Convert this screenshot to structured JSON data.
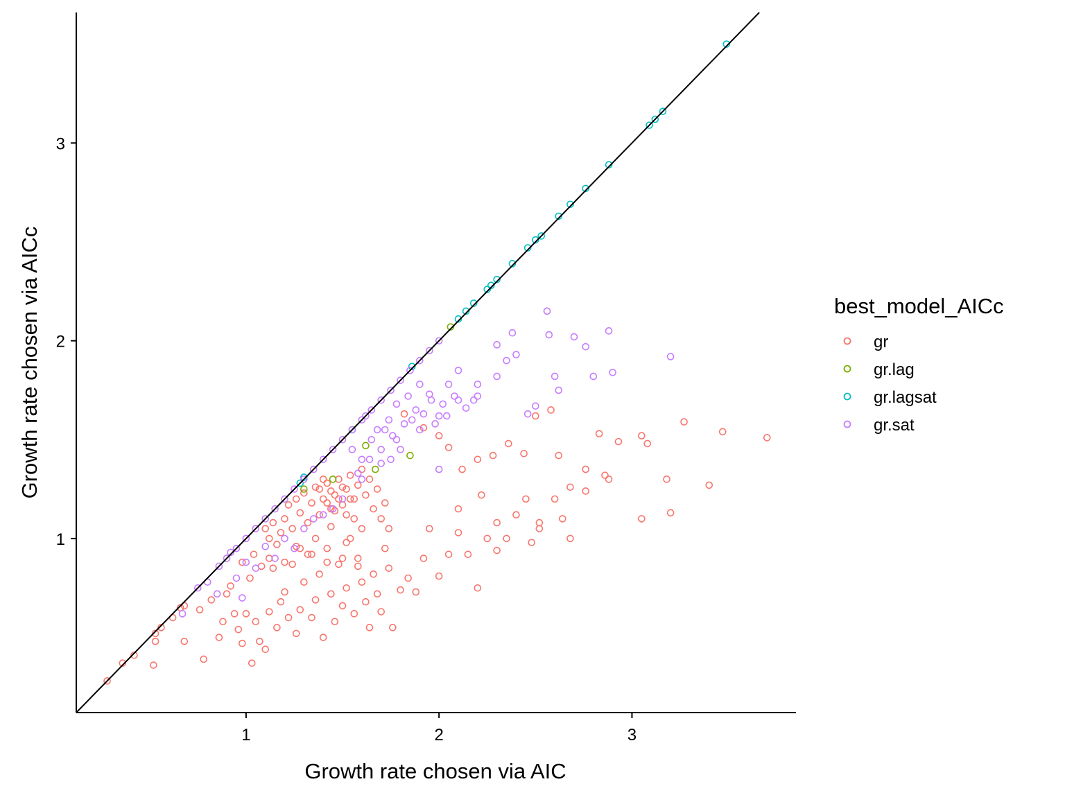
{
  "chart_data": {
    "type": "scatter",
    "xlabel": "Growth rate chosen via AIC",
    "ylabel": "Growth rate chosen via AICc",
    "xlim": [
      0.12,
      3.85
    ],
    "ylim": [
      0.12,
      3.66
    ],
    "x_ticks": [
      1,
      2,
      3
    ],
    "y_ticks": [
      1,
      2,
      3
    ],
    "x_tick_labels": [
      "1",
      "2",
      "3"
    ],
    "y_tick_labels": [
      "1",
      "2",
      "3"
    ],
    "grid": false,
    "reference_line": {
      "slope": 1,
      "intercept": 0
    },
    "legend": {
      "title": "best_model_AICc",
      "position": "right"
    },
    "colors": {
      "gr": "#F8766D",
      "gr.lag": "#7CAE00",
      "gr.lagsat": "#00BFC4",
      "gr.sat": "#C77CFF"
    },
    "series": [
      {
        "name": "gr",
        "color": "#F8766D",
        "points": [
          [
            0.28,
            0.28
          ],
          [
            0.36,
            0.37
          ],
          [
            0.42,
            0.41
          ],
          [
            0.52,
            0.36
          ],
          [
            0.53,
            0.48
          ],
          [
            0.53,
            0.52
          ],
          [
            0.56,
            0.55
          ],
          [
            0.62,
            0.6
          ],
          [
            0.66,
            0.65
          ],
          [
            0.68,
            0.66
          ],
          [
            0.68,
            0.48
          ],
          [
            0.78,
            0.39
          ],
          [
            0.76,
            0.64
          ],
          [
            0.82,
            0.69
          ],
          [
            0.86,
            0.5
          ],
          [
            0.88,
            0.58
          ],
          [
            0.9,
            0.72
          ],
          [
            0.92,
            0.76
          ],
          [
            0.94,
            0.62
          ],
          [
            0.96,
            0.54
          ],
          [
            0.98,
            0.47
          ],
          [
            1.0,
            0.62
          ],
          [
            1.02,
            0.8
          ],
          [
            1.03,
            0.37
          ],
          [
            1.05,
            0.58
          ],
          [
            1.07,
            0.48
          ],
          [
            1.1,
            0.44
          ],
          [
            1.12,
            0.63
          ],
          [
            1.14,
            0.85
          ],
          [
            1.16,
            0.55
          ],
          [
            1.18,
            0.68
          ],
          [
            1.2,
            0.73
          ],
          [
            1.22,
            0.6
          ],
          [
            1.24,
            0.87
          ],
          [
            1.26,
            0.52
          ],
          [
            1.28,
            0.64
          ],
          [
            1.3,
            0.78
          ],
          [
            1.32,
            0.92
          ],
          [
            1.34,
            0.6
          ],
          [
            1.36,
            0.69
          ],
          [
            1.38,
            0.82
          ],
          [
            1.4,
            0.5
          ],
          [
            1.42,
            0.95
          ],
          [
            1.44,
            0.72
          ],
          [
            1.46,
            0.58
          ],
          [
            1.48,
            0.87
          ],
          [
            1.5,
            0.66
          ],
          [
            1.52,
            0.75
          ],
          [
            1.54,
            1.0
          ],
          [
            1.56,
            0.62
          ],
          [
            1.58,
            0.9
          ],
          [
            1.6,
            0.78
          ],
          [
            1.62,
            0.68
          ],
          [
            1.64,
            0.55
          ],
          [
            1.66,
            0.82
          ],
          [
            1.68,
            0.72
          ],
          [
            1.7,
            0.63
          ],
          [
            1.72,
            0.95
          ],
          [
            1.74,
            0.85
          ],
          [
            1.76,
            0.55
          ],
          [
            1.8,
            0.74
          ],
          [
            1.84,
            0.8
          ],
          [
            1.88,
            0.73
          ],
          [
            1.92,
            0.9
          ],
          [
            1.95,
            1.05
          ],
          [
            2.0,
            0.81
          ],
          [
            2.05,
            0.92
          ],
          [
            2.1,
            1.03
          ],
          [
            2.15,
            0.92
          ],
          [
            2.2,
            0.75
          ],
          [
            2.25,
            1.0
          ],
          [
            2.3,
            0.94
          ],
          [
            2.35,
            1.0
          ],
          [
            2.4,
            1.12
          ],
          [
            2.48,
            0.98
          ],
          [
            2.52,
            1.05
          ],
          [
            2.6,
            1.2
          ],
          [
            2.68,
            1.26
          ],
          [
            2.68,
            1.0
          ],
          [
            2.76,
            1.24
          ],
          [
            2.88,
            1.3
          ],
          [
            3.05,
            1.1
          ],
          [
            3.18,
            1.3
          ],
          [
            3.2,
            1.13
          ],
          [
            3.4,
            1.27
          ],
          [
            1.82,
            1.63
          ],
          [
            1.92,
            1.56
          ],
          [
            2.0,
            1.52
          ],
          [
            2.05,
            1.46
          ],
          [
            2.12,
            1.35
          ],
          [
            2.2,
            1.4
          ],
          [
            2.28,
            1.42
          ],
          [
            2.36,
            1.48
          ],
          [
            2.44,
            1.43
          ],
          [
            2.5,
            1.62
          ],
          [
            2.58,
            1.65
          ],
          [
            2.62,
            1.42
          ],
          [
            2.76,
            1.35
          ],
          [
            2.83,
            1.53
          ],
          [
            2.93,
            1.49
          ],
          [
            3.05,
            1.52
          ],
          [
            3.08,
            1.48
          ],
          [
            3.27,
            1.59
          ],
          [
            3.47,
            1.54
          ],
          [
            3.7,
            1.51
          ],
          [
            2.86,
            1.32
          ],
          [
            2.1,
            1.15
          ],
          [
            2.22,
            1.22
          ],
          [
            2.3,
            1.08
          ],
          [
            2.45,
            1.2
          ],
          [
            2.52,
            1.08
          ],
          [
            2.64,
            1.1
          ],
          [
            1.2,
            1.1
          ],
          [
            1.22,
            1.17
          ],
          [
            1.24,
            1.05
          ],
          [
            1.26,
            1.2
          ],
          [
            1.28,
            1.13
          ],
          [
            1.3,
            1.23
          ],
          [
            1.32,
            1.08
          ],
          [
            1.34,
            1.18
          ],
          [
            1.36,
            1.26
          ],
          [
            1.38,
            1.12
          ],
          [
            1.4,
            1.2
          ],
          [
            1.42,
            1.28
          ],
          [
            1.44,
            1.15
          ],
          [
            1.46,
            1.22
          ],
          [
            1.48,
            1.3
          ],
          [
            1.5,
            1.17
          ],
          [
            1.52,
            1.25
          ],
          [
            1.54,
            1.32
          ],
          [
            1.56,
            1.2
          ],
          [
            1.58,
            1.27
          ],
          [
            1.6,
            1.35
          ],
          [
            1.62,
            1.22
          ],
          [
            1.64,
            1.3
          ],
          [
            1.66,
            1.15
          ],
          [
            1.68,
            1.25
          ],
          [
            1.7,
            1.1
          ],
          [
            1.72,
            1.18
          ],
          [
            1.74,
            1.05
          ],
          [
            1.1,
            1.05
          ],
          [
            1.12,
            1.0
          ],
          [
            1.14,
            1.08
          ],
          [
            1.16,
            0.97
          ],
          [
            1.18,
            1.03
          ],
          [
            1.28,
            0.95
          ],
          [
            1.36,
            1.0
          ],
          [
            1.44,
            1.06
          ],
          [
            1.52,
            0.98
          ],
          [
            1.6,
            1.05
          ],
          [
            1.38,
            1.25
          ],
          [
            1.4,
            1.3
          ],
          [
            1.42,
            1.18
          ],
          [
            1.44,
            1.24
          ],
          [
            1.46,
            1.14
          ],
          [
            1.48,
            1.2
          ],
          [
            1.5,
            1.26
          ],
          [
            1.52,
            1.12
          ],
          [
            1.54,
            1.2
          ],
          [
            1.56,
            1.1
          ],
          [
            0.98,
            0.88
          ],
          [
            1.04,
            0.92
          ],
          [
            1.08,
            0.86
          ],
          [
            1.12,
            0.9
          ],
          [
            1.2,
            0.88
          ],
          [
            1.26,
            0.96
          ],
          [
            1.34,
            0.92
          ],
          [
            1.42,
            0.88
          ],
          [
            1.5,
            0.9
          ],
          [
            1.58,
            0.86
          ]
        ]
      },
      {
        "name": "gr.lag",
        "color": "#7CAE00",
        "points": [
          [
            1.62,
            1.47
          ],
          [
            1.85,
            1.42
          ],
          [
            1.67,
            1.35
          ],
          [
            2.06,
            2.07
          ],
          [
            1.45,
            1.3
          ],
          [
            1.3,
            1.25
          ]
        ]
      },
      {
        "name": "gr.lagsat",
        "color": "#00BFC4",
        "points": [
          [
            3.49,
            3.5
          ],
          [
            3.16,
            3.16
          ],
          [
            3.12,
            3.12
          ],
          [
            3.09,
            3.09
          ],
          [
            2.88,
            2.89
          ],
          [
            2.76,
            2.77
          ],
          [
            2.68,
            2.69
          ],
          [
            2.62,
            2.63
          ],
          [
            2.53,
            2.53
          ],
          [
            2.5,
            2.51
          ],
          [
            2.46,
            2.47
          ],
          [
            2.38,
            2.39
          ],
          [
            2.3,
            2.31
          ],
          [
            2.27,
            2.28
          ],
          [
            2.25,
            2.26
          ],
          [
            2.18,
            2.19
          ],
          [
            2.14,
            2.15
          ],
          [
            2.1,
            2.11
          ],
          [
            1.86,
            1.87
          ],
          [
            1.55,
            1.55
          ],
          [
            1.28,
            1.28
          ],
          [
            1.3,
            1.31
          ]
        ]
      },
      {
        "name": "gr.sat",
        "color": "#C77CFF",
        "points": [
          [
            0.75,
            0.75
          ],
          [
            0.8,
            0.78
          ],
          [
            0.86,
            0.86
          ],
          [
            0.9,
            0.9
          ],
          [
            0.95,
            0.95
          ],
          [
            1.0,
            1.0
          ],
          [
            1.05,
            1.05
          ],
          [
            1.1,
            1.1
          ],
          [
            1.15,
            1.15
          ],
          [
            1.2,
            1.2
          ],
          [
            1.25,
            1.25
          ],
          [
            1.3,
            1.3
          ],
          [
            1.35,
            1.35
          ],
          [
            1.4,
            1.4
          ],
          [
            1.45,
            1.45
          ],
          [
            1.5,
            1.5
          ],
          [
            1.55,
            1.55
          ],
          [
            1.6,
            1.6
          ],
          [
            1.65,
            1.65
          ],
          [
            1.7,
            1.7
          ],
          [
            1.75,
            1.75
          ],
          [
            1.8,
            1.8
          ],
          [
            1.85,
            1.85
          ],
          [
            1.9,
            1.9
          ],
          [
            1.95,
            1.95
          ],
          [
            2.0,
            2.0
          ],
          [
            0.67,
            0.62
          ],
          [
            0.98,
            0.7
          ],
          [
            0.92,
            0.93
          ],
          [
            1.0,
            0.88
          ],
          [
            1.1,
            0.96
          ],
          [
            1.2,
            1.0
          ],
          [
            1.3,
            1.05
          ],
          [
            1.4,
            1.12
          ],
          [
            1.5,
            1.2
          ],
          [
            1.6,
            1.3
          ],
          [
            1.7,
            1.38
          ],
          [
            1.8,
            1.45
          ],
          [
            1.9,
            1.55
          ],
          [
            2.0,
            1.62
          ],
          [
            2.1,
            1.7
          ],
          [
            2.2,
            1.78
          ],
          [
            2.3,
            1.82
          ],
          [
            2.35,
            1.9
          ],
          [
            2.4,
            1.93
          ],
          [
            2.46,
            1.63
          ],
          [
            2.5,
            1.67
          ],
          [
            2.56,
            2.15
          ],
          [
            2.57,
            2.03
          ],
          [
            2.6,
            1.82
          ],
          [
            2.62,
            1.75
          ],
          [
            2.7,
            2.02
          ],
          [
            2.76,
            1.97
          ],
          [
            2.8,
            1.82
          ],
          [
            2.88,
            2.05
          ],
          [
            2.9,
            1.84
          ],
          [
            3.2,
            1.92
          ],
          [
            2.3,
            1.98
          ],
          [
            2.38,
            2.04
          ],
          [
            2.2,
            1.72
          ],
          [
            2.1,
            1.85
          ],
          [
            2.05,
            1.78
          ],
          [
            1.95,
            1.73
          ],
          [
            1.88,
            1.65
          ],
          [
            1.82,
            1.58
          ],
          [
            1.76,
            1.52
          ],
          [
            1.7,
            1.45
          ],
          [
            1.64,
            1.4
          ],
          [
            1.58,
            1.33
          ],
          [
            1.62,
            1.62
          ],
          [
            1.68,
            1.55
          ],
          [
            1.74,
            1.6
          ],
          [
            1.78,
            1.68
          ],
          [
            1.84,
            1.72
          ],
          [
            1.9,
            1.78
          ],
          [
            1.96,
            1.7
          ],
          [
            2.02,
            1.68
          ],
          [
            2.08,
            1.72
          ],
          [
            2.14,
            1.66
          ],
          [
            2.18,
            1.7
          ],
          [
            1.55,
            1.45
          ],
          [
            1.6,
            1.4
          ],
          [
            1.65,
            1.5
          ],
          [
            1.72,
            1.55
          ],
          [
            1.78,
            1.5
          ],
          [
            1.86,
            1.6
          ],
          [
            1.92,
            1.63
          ],
          [
            1.98,
            1.58
          ],
          [
            2.04,
            1.62
          ],
          [
            1.25,
            0.95
          ],
          [
            1.15,
            0.9
          ],
          [
            1.05,
            0.85
          ],
          [
            0.95,
            0.8
          ],
          [
            0.85,
            0.72
          ],
          [
            1.35,
            1.1
          ],
          [
            1.45,
            1.15
          ],
          [
            2.0,
            1.35
          ],
          [
            1.75,
            1.4
          ]
        ]
      }
    ]
  }
}
